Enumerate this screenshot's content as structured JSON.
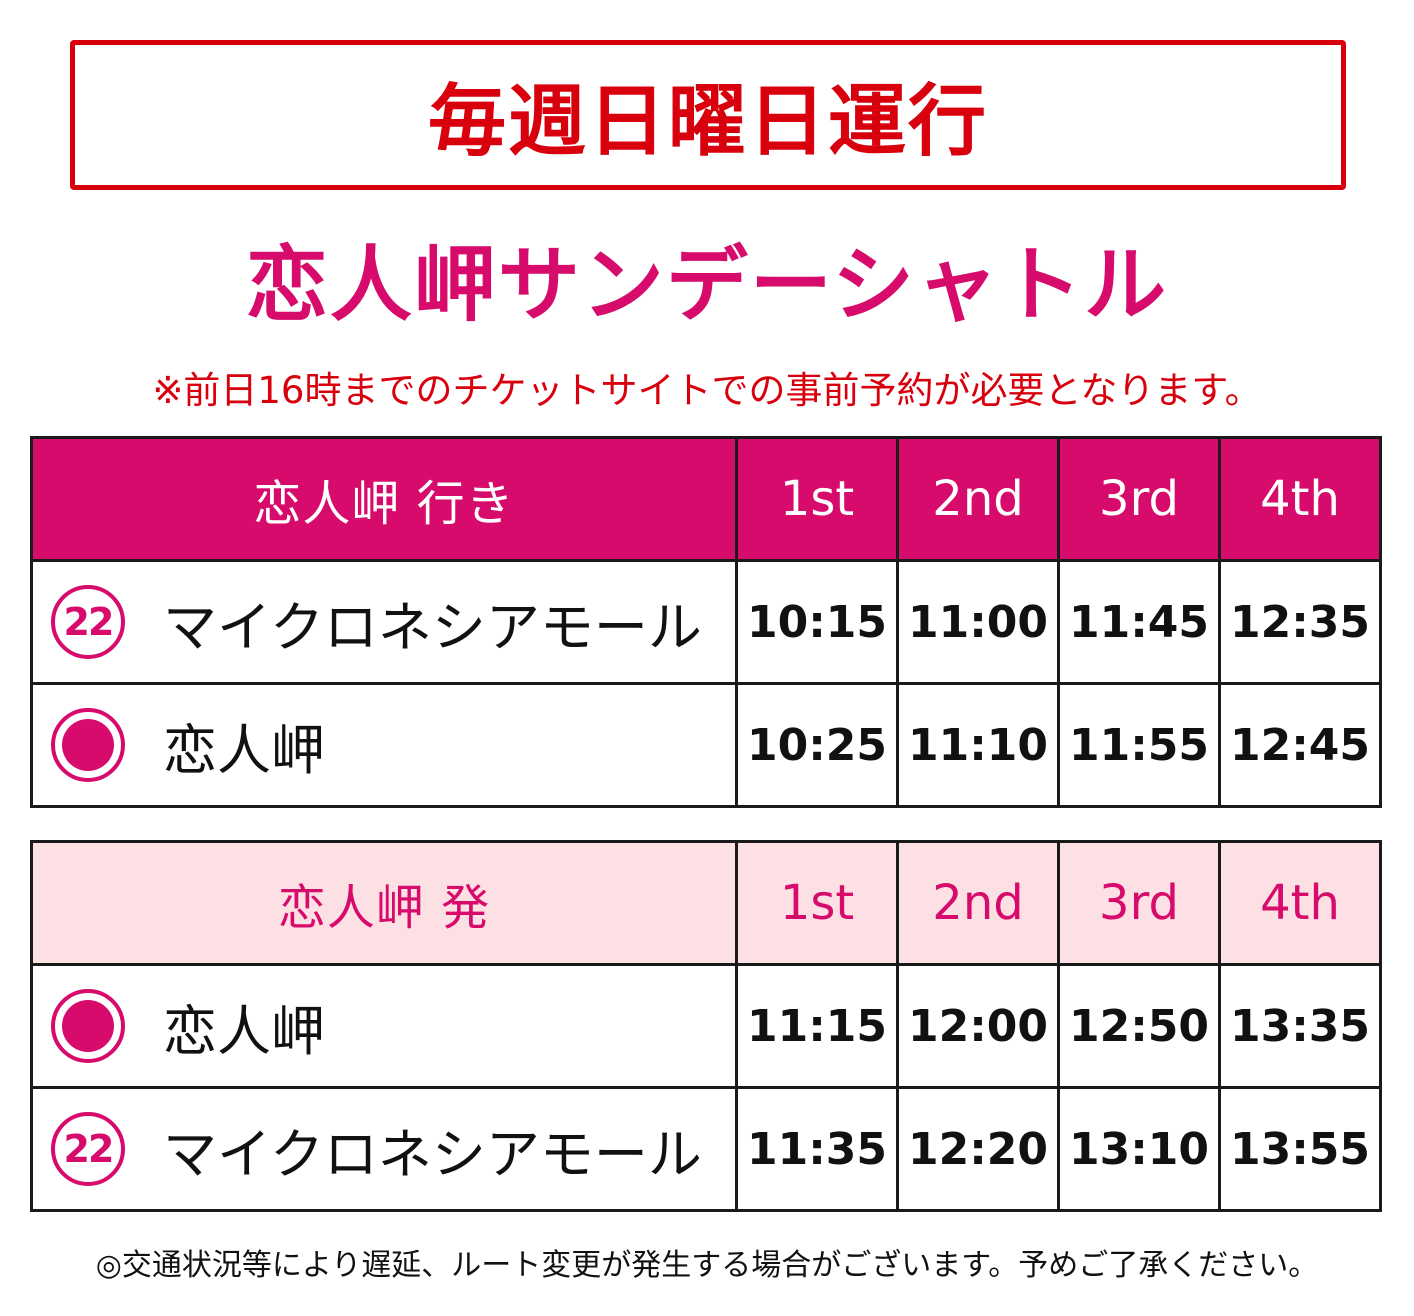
{
  "banner": {
    "text": "毎週日曜日運行"
  },
  "title": "恋人岬サンデーシャトル",
  "notice": "※前日16時までのチケットサイトでの事前予約が必要となります。",
  "colors": {
    "accent": "#d60b6b",
    "red": "#d9000d",
    "light_pink": "#fde0e3"
  },
  "outbound": {
    "header": "恋人岬 行き",
    "runs": [
      "1st",
      "2nd",
      "3rd",
      "4th"
    ],
    "rows": [
      {
        "icon": "number-22-icon",
        "icon_text": "22",
        "stop": "マイクロネシアモール",
        "times": [
          "10:15",
          "11:00",
          "11:45",
          "12:35"
        ]
      },
      {
        "icon": "dot-icon",
        "stop": "恋人岬",
        "times": [
          "10:25",
          "11:10",
          "11:55",
          "12:45"
        ]
      }
    ]
  },
  "inbound": {
    "header": "恋人岬 発",
    "runs": [
      "1st",
      "2nd",
      "3rd",
      "4th"
    ],
    "rows": [
      {
        "icon": "dot-icon",
        "stop": "恋人岬",
        "times": [
          "11:15",
          "12:00",
          "12:50",
          "13:35"
        ]
      },
      {
        "icon": "number-22-icon",
        "icon_text": "22",
        "stop": "マイクロネシアモール",
        "times": [
          "11:35",
          "12:20",
          "13:10",
          "13:55"
        ]
      }
    ]
  },
  "footer": "◎交通状況等により遅延、ルート変更が発生する場合がございます。予めご了承ください。"
}
